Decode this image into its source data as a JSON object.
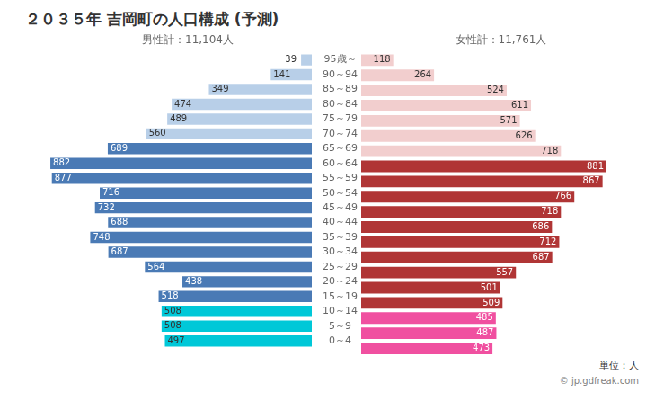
{
  "chart_data": {
    "type": "bar",
    "orientation": "horizontal",
    "title": "２０３５年 吉岡町の人口構成 (予測)",
    "categories": [
      "95歳～",
      "90～94",
      "85～89",
      "80～84",
      "75～79",
      "70～74",
      "65～69",
      "60～64",
      "55～59",
      "50～54",
      "45～49",
      "40～44",
      "35～39",
      "30～34",
      "25～29",
      "20～24",
      "15～19",
      "10～14",
      "5～9",
      "0～4"
    ],
    "series": [
      {
        "name": "男性計：11,104人",
        "values": [
          39,
          141,
          349,
          474,
          489,
          560,
          689,
          882,
          877,
          716,
          732,
          688,
          748,
          687,
          564,
          438,
          518,
          508,
          508,
          497
        ],
        "colors": [
          "#b8cfe8",
          "#b8cfe8",
          "#b8cfe8",
          "#b8cfe8",
          "#b8cfe8",
          "#b8cfe8",
          "#4a7ab5",
          "#4a7ab5",
          "#4a7ab5",
          "#4a7ab5",
          "#4a7ab5",
          "#4a7ab5",
          "#4a7ab5",
          "#4a7ab5",
          "#4a7ab5",
          "#4a7ab5",
          "#4a7ab5",
          "#00c8d8",
          "#00c8d8",
          "#00c8d8"
        ]
      },
      {
        "name": "女性計：11,761人",
        "values": [
          118,
          264,
          524,
          611,
          571,
          626,
          718,
          881,
          867,
          766,
          718,
          686,
          712,
          687,
          557,
          501,
          509,
          485,
          487,
          473
        ],
        "colors": [
          "#f2cece",
          "#f2cece",
          "#f2cece",
          "#f2cece",
          "#f2cece",
          "#f2cece",
          "#f2cece",
          "#b03535",
          "#b03535",
          "#b03535",
          "#b03535",
          "#b03535",
          "#b03535",
          "#b03535",
          "#b03535",
          "#b03535",
          "#b03535",
          "#f050a0",
          "#f050a0",
          "#f050a0"
        ]
      }
    ],
    "xlim": [
      0,
      1000
    ],
    "grid": false,
    "tick_labels": "y",
    "data_labels": true,
    "annotations": [
      "単位：人",
      "© jp.gdfreak.com"
    ]
  }
}
